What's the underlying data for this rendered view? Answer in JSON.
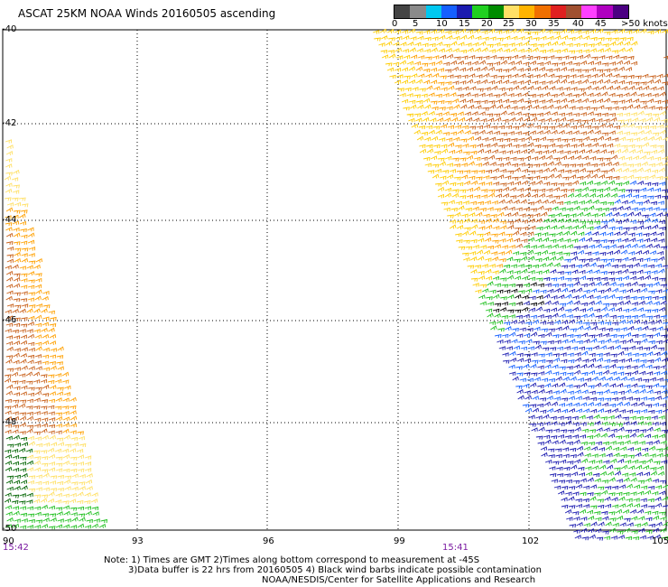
{
  "header": {
    "title": "ASCAT 25KM NOAA Winds 20160505 ascending"
  },
  "legend": {
    "colors": [
      "#444444",
      "#8a8a8a",
      "#00c8f0",
      "#1560ff",
      "#1b1bb0",
      "#20d020",
      "#008c00",
      "#ffe066",
      "#ffb400",
      "#f07000",
      "#e02020",
      "#a05030",
      "#ff40ff",
      "#b000c0",
      "#4b0082"
    ],
    "labels": [
      "0",
      "5",
      "10",
      "15",
      "20",
      "25",
      "30",
      "35",
      "40",
      "45",
      ">50 knots"
    ]
  },
  "axes": {
    "lat_ticks": [
      "-40",
      "-42",
      "-44",
      "-46",
      "-48",
      "-50"
    ],
    "lon_ticks": [
      "90",
      "93",
      "96",
      "99",
      "102",
      "105"
    ],
    "times": [
      "15:42",
      "15:41"
    ]
  },
  "notes": {
    "line1": "Note: 1) Times are GMT 2)Times along bottom correspond to measurement at -45S",
    "line2": "3)Data buffer is 22 hrs from 20160505 4) Black wind barbs indicate possible contamination",
    "line3": "NOAA/NESDIS/Center for Satellite Applications and Research"
  }
}
